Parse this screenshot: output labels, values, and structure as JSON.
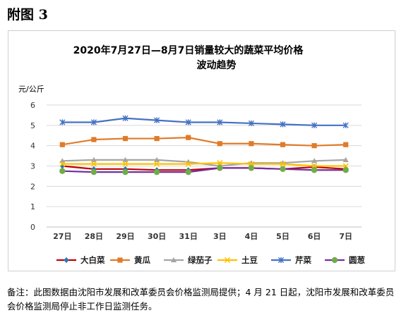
{
  "heading": "附图 3",
  "note": "备注：此图数据由沈阳市发展和改革委员会价格监测局提供；4 月 21 日起，沈阳市发展和改革委员会价格监测局停止非工作日监测任务。",
  "chart_data": {
    "type": "line",
    "title_line1": "2020年7月27日—8月7日销量较大的蔬菜平均价格",
    "title_line2": "波动趋势",
    "ylabel": "元/公斤",
    "xlabel": "",
    "categories": [
      "27日",
      "28日",
      "29日",
      "30日",
      "31日",
      "3日",
      "4日",
      "5日",
      "6日",
      "7日"
    ],
    "yticks": [
      "0",
      "1",
      "2",
      "3",
      "4",
      "5",
      "6"
    ],
    "ylim": [
      0,
      6
    ],
    "grid": true,
    "legend_position": "bottom",
    "series": [
      {
        "name": "大白菜",
        "color": "#c00000",
        "marker": "diamond",
        "marker_color": "#2e75b6",
        "values": [
          3.0,
          2.85,
          2.85,
          2.8,
          2.8,
          2.9,
          2.9,
          2.85,
          2.95,
          2.85
        ]
      },
      {
        "name": "黄瓜",
        "color": "#e07b29",
        "marker": "square",
        "marker_color": "#e07b29",
        "values": [
          4.05,
          4.3,
          4.35,
          4.35,
          4.4,
          4.1,
          4.1,
          4.05,
          4.0,
          4.05
        ]
      },
      {
        "name": "绿茄子",
        "color": "#a5a5a5",
        "marker": "triangle",
        "marker_color": "#a5a5a5",
        "values": [
          3.25,
          3.3,
          3.3,
          3.3,
          3.2,
          3.0,
          3.15,
          3.15,
          3.25,
          3.3
        ]
      },
      {
        "name": "土豆",
        "color": "#ffc000",
        "marker": "x",
        "marker_color": "#ffc000",
        "values": [
          3.1,
          3.1,
          3.1,
          3.1,
          3.1,
          3.15,
          3.1,
          3.1,
          3.0,
          3.0
        ]
      },
      {
        "name": "芹菜",
        "color": "#4472c4",
        "marker": "star",
        "marker_color": "#4472c4",
        "values": [
          5.15,
          5.15,
          5.35,
          5.25,
          5.15,
          5.15,
          5.1,
          5.05,
          5.0,
          5.0
        ]
      },
      {
        "name": "圆葱",
        "color": "#7030a0",
        "marker": "circle",
        "marker_color": "#70ad47",
        "values": [
          2.75,
          2.7,
          2.7,
          2.7,
          2.7,
          2.9,
          2.9,
          2.85,
          2.8,
          2.8
        ]
      }
    ]
  }
}
